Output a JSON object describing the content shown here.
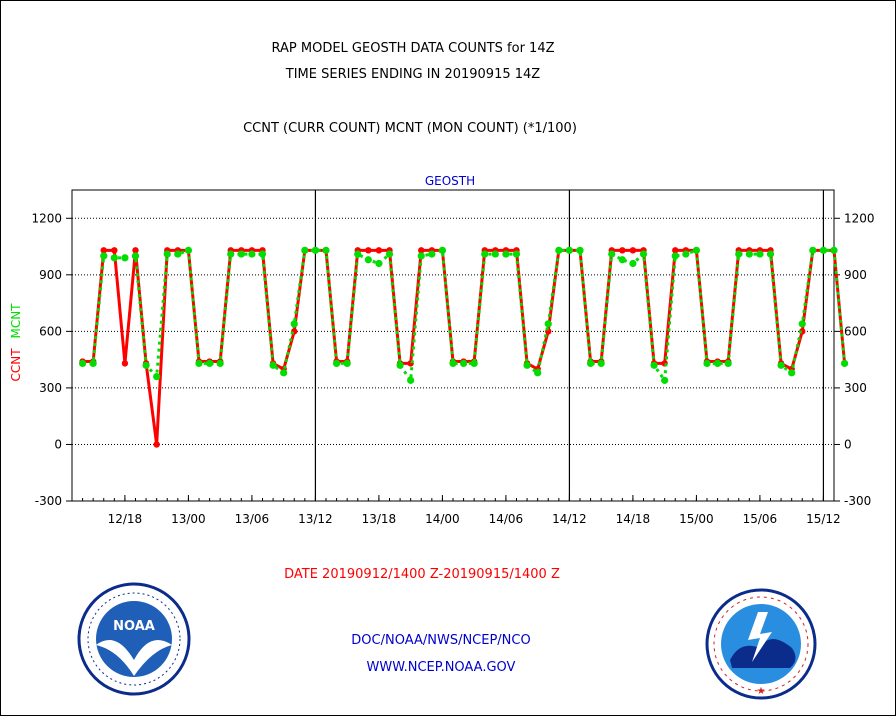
{
  "header": {
    "title_line1": "RAP MODEL GEOSTH DATA COUNTS for 14Z",
    "title_line2": "TIME SERIES ENDING IN 20190915 14Z",
    "subtitle": "CCNT (CURR COUNT) MCNT (MON COUNT) (*1/100)",
    "panel_label": "GEOSTH"
  },
  "footer": {
    "date_range": "DATE 20190912/1400 Z-20190915/1400 Z",
    "agency": "DOC/NOAA/NWS/NCEP/NCO",
    "url": "WWW.NCEP.NOAA.GOV"
  },
  "logos": {
    "noaa_text": "NOAA",
    "nws_text": "NATIONAL WEATHER SERVICE"
  },
  "colors": {
    "ccnt": "#ff0000",
    "mcnt": "#00dd00",
    "axis": "#000000",
    "blue": "#0000cc"
  },
  "chart_data": {
    "type": "line",
    "ylim": [
      -300,
      1350
    ],
    "yticks": [
      -300,
      0,
      300,
      600,
      900,
      1200
    ],
    "ylabel_ccnt": "CCNT",
    "ylabel_mcnt": "MCNT",
    "xlim_hours": [
      -1,
      71
    ],
    "x_ticks": [
      {
        "hour": 4,
        "label": "12/18"
      },
      {
        "hour": 10,
        "label": "13/00"
      },
      {
        "hour": 16,
        "label": "13/06"
      },
      {
        "hour": 22,
        "label": "13/12"
      },
      {
        "hour": 28,
        "label": "13/18"
      },
      {
        "hour": 34,
        "label": "14/00"
      },
      {
        "hour": 40,
        "label": "14/06"
      },
      {
        "hour": 46,
        "label": "14/12"
      },
      {
        "hour": 52,
        "label": "14/18"
      },
      {
        "hour": 58,
        "label": "15/00"
      },
      {
        "hour": 64,
        "label": "15/06"
      },
      {
        "hour": 70,
        "label": "15/12"
      }
    ],
    "day_markers": [
      22,
      46,
      70
    ],
    "grid": "dotted-horizontal",
    "series": [
      {
        "name": "CCNT",
        "color": "#ff0000",
        "values": [
          440,
          440,
          1030,
          1030,
          430,
          1030,
          430,
          0,
          1030,
          1030,
          1030,
          440,
          440,
          440,
          1030,
          1030,
          1030,
          1030,
          430,
          400,
          600,
          1030,
          1030,
          1030,
          440,
          440,
          1030,
          1030,
          1030,
          1030,
          430,
          430,
          1030,
          1030,
          1030,
          440,
          440,
          440,
          1030,
          1030,
          1030,
          1030,
          430,
          400,
          600,
          1030,
          1030,
          1030,
          440,
          440,
          1030,
          1030,
          1030,
          1030,
          430,
          430,
          1030,
          1030,
          1030,
          440,
          440,
          440,
          1030,
          1030,
          1030,
          1030,
          430,
          400,
          600,
          1030,
          1030,
          1030,
          430
        ]
      },
      {
        "name": "MCNT",
        "color": "#00dd00",
        "values": [
          430,
          430,
          1000,
          990,
          990,
          1000,
          420,
          360,
          1010,
          1010,
          1030,
          430,
          430,
          430,
          1010,
          1010,
          1010,
          1010,
          420,
          380,
          640,
          1030,
          1030,
          1030,
          430,
          430,
          1010,
          980,
          960,
          1010,
          420,
          340,
          1000,
          1010,
          1030,
          430,
          430,
          430,
          1010,
          1010,
          1010,
          1010,
          420,
          380,
          640,
          1030,
          1030,
          1030,
          430,
          430,
          1010,
          980,
          960,
          1010,
          420,
          340,
          1000,
          1010,
          1030,
          430,
          430,
          430,
          1010,
          1010,
          1010,
          1010,
          420,
          380,
          640,
          1030,
          1030,
          1030,
          430
        ]
      }
    ]
  }
}
